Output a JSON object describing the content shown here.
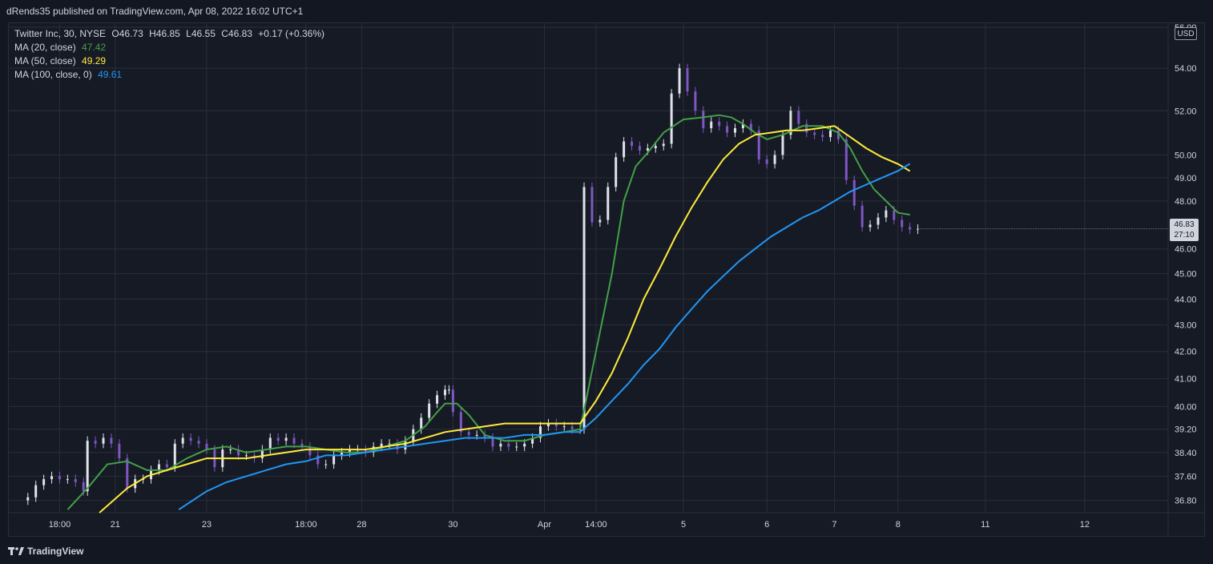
{
  "header": {
    "publish_note": "dRends35 published on TradingView.com, Apr 08, 2022 16:02 UTC+1"
  },
  "legend": {
    "symbol_line": "Twitter Inc, 30, NYSE",
    "ohlc": {
      "o_label": "O",
      "o": "46.73",
      "h_label": "H",
      "h": "46.85",
      "l_label": "L",
      "l": "46.55",
      "c_label": "C",
      "c": "46.83",
      "change": "+0.17 (+0.36%)"
    },
    "ma20": {
      "label": "MA (20, close)",
      "value": "47.42"
    },
    "ma50": {
      "label": "MA (50, close)",
      "value": "49.29"
    },
    "ma100": {
      "label": "MA (100, close, 0)",
      "value": "49.61"
    }
  },
  "axis": {
    "currency": "USD",
    "last_price": "46.83",
    "countdown": "27:10",
    "tick_labels": [
      "56.00",
      "54.00",
      "52.00",
      "50.00",
      "49.00",
      "48.00",
      "46.00",
      "45.00",
      "44.00",
      "43.00",
      "42.00",
      "41.00",
      "40.00",
      "39.20",
      "38.40",
      "37.60",
      "36.80"
    ],
    "time_labels": [
      "18:00",
      "21",
      "23",
      "18:00",
      "28",
      "30",
      "Apr",
      "14:00",
      "5",
      "6",
      "7",
      "8",
      "11",
      "12"
    ]
  },
  "footer": {
    "brand": "TradingView"
  },
  "colors": {
    "background": "#131722",
    "grid": "#2a2e39",
    "text": "#d1d4dc",
    "candle_up": "#e0e3eb",
    "candle_down": "#7e57c2",
    "ma20": "#43a047",
    "ma50": "#ffeb3b",
    "ma100": "#2196f3"
  },
  "chart_data": {
    "type": "line",
    "title": "Twitter Inc, 30, NYSE",
    "scale": "log",
    "ylim": [
      36.4,
      56.0
    ],
    "y_ticks": [
      56,
      54,
      52,
      50,
      49,
      48,
      46,
      45,
      44,
      43,
      42,
      41,
      40,
      39.2,
      38.4,
      37.6,
      36.8
    ],
    "x_ticks": [
      {
        "label": "18:00",
        "t": 8
      },
      {
        "label": "21",
        "t": 22
      },
      {
        "label": "23",
        "t": 45
      },
      {
        "label": "18:00",
        "t": 70
      },
      {
        "label": "28",
        "t": 84
      },
      {
        "label": "30",
        "t": 107
      },
      {
        "label": "Apr",
        "t": 130
      },
      {
        "label": "14:00",
        "t": 143
      },
      {
        "label": "5",
        "t": 165
      },
      {
        "label": "6",
        "t": 186
      },
      {
        "label": "7",
        "t": 203
      },
      {
        "label": "8",
        "t": 219
      },
      {
        "label": "11",
        "t": 241
      },
      {
        "label": "12",
        "t": 266
      }
    ],
    "price_close": [
      [
        0,
        36.9
      ],
      [
        2,
        37.3
      ],
      [
        4,
        37.5
      ],
      [
        6,
        37.6
      ],
      [
        8,
        37.5
      ],
      [
        10,
        37.5
      ],
      [
        12,
        37.4
      ],
      [
        14,
        37.1
      ],
      [
        15,
        38.8
      ],
      [
        17,
        38.7
      ],
      [
        19,
        38.9
      ],
      [
        21,
        38.7
      ],
      [
        23,
        38.2
      ],
      [
        25,
        37.2
      ],
      [
        27,
        37.5
      ],
      [
        29,
        37.5
      ],
      [
        31,
        37.8
      ],
      [
        33,
        38.0
      ],
      [
        35,
        37.9
      ],
      [
        37,
        38.7
      ],
      [
        39,
        38.9
      ],
      [
        41,
        38.8
      ],
      [
        43,
        38.7
      ],
      [
        45,
        38.5
      ],
      [
        47,
        37.9
      ],
      [
        49,
        38.5
      ],
      [
        51,
        38.5
      ],
      [
        53,
        38.3
      ],
      [
        55,
        38.3
      ],
      [
        57,
        38.2
      ],
      [
        59,
        38.5
      ],
      [
        61,
        38.9
      ],
      [
        63,
        38.8
      ],
      [
        65,
        38.9
      ],
      [
        67,
        38.7
      ],
      [
        69,
        38.6
      ],
      [
        71,
        38.3
      ],
      [
        73,
        38.0
      ],
      [
        75,
        38.0
      ],
      [
        77,
        38.3
      ],
      [
        79,
        38.4
      ],
      [
        81,
        38.5
      ],
      [
        83,
        38.5
      ],
      [
        85,
        38.4
      ],
      [
        87,
        38.6
      ],
      [
        89,
        38.7
      ],
      [
        91,
        38.7
      ],
      [
        93,
        38.5
      ],
      [
        95,
        38.8
      ],
      [
        97,
        39.2
      ],
      [
        99,
        39.6
      ],
      [
        101,
        40.1
      ],
      [
        103,
        40.4
      ],
      [
        105,
        40.6
      ],
      [
        106,
        40.6
      ],
      [
        107,
        39.8
      ],
      [
        109,
        39.1
      ],
      [
        111,
        39.0
      ],
      [
        113,
        39.0
      ],
      [
        115,
        38.9
      ],
      [
        117,
        38.6
      ],
      [
        119,
        38.7
      ],
      [
        121,
        38.6
      ],
      [
        123,
        38.6
      ],
      [
        125,
        38.7
      ],
      [
        127,
        38.9
      ],
      [
        129,
        39.3
      ],
      [
        131,
        39.4
      ],
      [
        133,
        39.3
      ],
      [
        135,
        39.3
      ],
      [
        137,
        39.2
      ],
      [
        139,
        39.2
      ],
      [
        140,
        48.6
      ],
      [
        142,
        47.1
      ],
      [
        144,
        47.2
      ],
      [
        146,
        48.6
      ],
      [
        148,
        49.9
      ],
      [
        150,
        50.6
      ],
      [
        152,
        50.4
      ],
      [
        154,
        50.2
      ],
      [
        156,
        50.3
      ],
      [
        158,
        50.4
      ],
      [
        160,
        50.5
      ],
      [
        162,
        52.8
      ],
      [
        164,
        54.0
      ],
      [
        166,
        52.9
      ],
      [
        168,
        52.0
      ],
      [
        170,
        51.2
      ],
      [
        172,
        51.5
      ],
      [
        174,
        51.3
      ],
      [
        176,
        51.0
      ],
      [
        178,
        51.2
      ],
      [
        180,
        51.4
      ],
      [
        182,
        51.1
      ],
      [
        184,
        49.8
      ],
      [
        186,
        49.6
      ],
      [
        188,
        50.0
      ],
      [
        190,
        50.9
      ],
      [
        192,
        52.0
      ],
      [
        194,
        51.4
      ],
      [
        196,
        51.0
      ],
      [
        198,
        50.9
      ],
      [
        200,
        50.8
      ],
      [
        202,
        51.1
      ],
      [
        204,
        50.7
      ],
      [
        206,
        48.9
      ],
      [
        208,
        47.8
      ],
      [
        210,
        46.9
      ],
      [
        212,
        47.0
      ],
      [
        214,
        47.3
      ],
      [
        216,
        47.6
      ],
      [
        218,
        47.2
      ],
      [
        220,
        46.9
      ],
      [
        222,
        46.8
      ],
      [
        224,
        46.83
      ]
    ],
    "series": [
      {
        "name": "MA (20, close)",
        "color": "#43a047",
        "points": [
          [
            10,
            36.5
          ],
          [
            15,
            37.2
          ],
          [
            20,
            38.0
          ],
          [
            25,
            38.1
          ],
          [
            30,
            37.8
          ],
          [
            35,
            37.8
          ],
          [
            40,
            38.2
          ],
          [
            45,
            38.5
          ],
          [
            50,
            38.6
          ],
          [
            55,
            38.4
          ],
          [
            60,
            38.5
          ],
          [
            65,
            38.6
          ],
          [
            70,
            38.6
          ],
          [
            75,
            38.5
          ],
          [
            80,
            38.4
          ],
          [
            85,
            38.4
          ],
          [
            90,
            38.6
          ],
          [
            95,
            38.8
          ],
          [
            100,
            39.3
          ],
          [
            103,
            39.8
          ],
          [
            105,
            40.1
          ],
          [
            108,
            40.1
          ],
          [
            111,
            39.7
          ],
          [
            115,
            39.0
          ],
          [
            120,
            38.8
          ],
          [
            125,
            38.8
          ],
          [
            130,
            39.0
          ],
          [
            135,
            39.1
          ],
          [
            139,
            39.2
          ],
          [
            143,
            42.0
          ],
          [
            147,
            45.0
          ],
          [
            150,
            48.0
          ],
          [
            153,
            49.5
          ],
          [
            156,
            50.1
          ],
          [
            160,
            51.0
          ],
          [
            165,
            51.6
          ],
          [
            170,
            51.7
          ],
          [
            174,
            51.8
          ],
          [
            177,
            51.7
          ],
          [
            180,
            51.4
          ],
          [
            183,
            51.0
          ],
          [
            186,
            50.7
          ],
          [
            190,
            50.9
          ],
          [
            195,
            51.3
          ],
          [
            200,
            51.3
          ],
          [
            204,
            51.0
          ],
          [
            207,
            50.3
          ],
          [
            210,
            49.3
          ],
          [
            213,
            48.5
          ],
          [
            216,
            48.0
          ],
          [
            219,
            47.5
          ],
          [
            222,
            47.42
          ]
        ]
      },
      {
        "name": "MA (50, close)",
        "color": "#ffeb3b",
        "points": [
          [
            18,
            36.4
          ],
          [
            25,
            37.2
          ],
          [
            30,
            37.6
          ],
          [
            35,
            37.8
          ],
          [
            40,
            38.0
          ],
          [
            45,
            38.2
          ],
          [
            50,
            38.2
          ],
          [
            55,
            38.2
          ],
          [
            60,
            38.3
          ],
          [
            65,
            38.4
          ],
          [
            70,
            38.5
          ],
          [
            75,
            38.5
          ],
          [
            80,
            38.5
          ],
          [
            85,
            38.5
          ],
          [
            90,
            38.6
          ],
          [
            95,
            38.7
          ],
          [
            100,
            38.9
          ],
          [
            105,
            39.1
          ],
          [
            110,
            39.2
          ],
          [
            115,
            39.3
          ],
          [
            120,
            39.4
          ],
          [
            125,
            39.4
          ],
          [
            130,
            39.4
          ],
          [
            135,
            39.4
          ],
          [
            139,
            39.4
          ],
          [
            143,
            40.2
          ],
          [
            147,
            41.2
          ],
          [
            151,
            42.5
          ],
          [
            155,
            44.0
          ],
          [
            159,
            45.2
          ],
          [
            163,
            46.5
          ],
          [
            167,
            47.7
          ],
          [
            171,
            48.8
          ],
          [
            175,
            49.8
          ],
          [
            179,
            50.5
          ],
          [
            183,
            50.9
          ],
          [
            187,
            51.0
          ],
          [
            191,
            51.1
          ],
          [
            195,
            51.1
          ],
          [
            199,
            51.2
          ],
          [
            203,
            51.3
          ],
          [
            207,
            50.8
          ],
          [
            211,
            50.3
          ],
          [
            215,
            49.9
          ],
          [
            219,
            49.6
          ],
          [
            222,
            49.29
          ]
        ]
      },
      {
        "name": "MA (100, close, 0)",
        "color": "#2196f3",
        "points": [
          [
            38,
            36.5
          ],
          [
            45,
            37.1
          ],
          [
            50,
            37.4
          ],
          [
            55,
            37.6
          ],
          [
            60,
            37.8
          ],
          [
            65,
            38.0
          ],
          [
            70,
            38.1
          ],
          [
            75,
            38.3
          ],
          [
            80,
            38.3
          ],
          [
            85,
            38.4
          ],
          [
            90,
            38.5
          ],
          [
            95,
            38.6
          ],
          [
            100,
            38.7
          ],
          [
            105,
            38.8
          ],
          [
            110,
            38.9
          ],
          [
            115,
            38.9
          ],
          [
            120,
            38.9
          ],
          [
            125,
            39.0
          ],
          [
            130,
            39.0
          ],
          [
            135,
            39.1
          ],
          [
            139,
            39.1
          ],
          [
            143,
            39.6
          ],
          [
            147,
            40.2
          ],
          [
            151,
            40.8
          ],
          [
            155,
            41.5
          ],
          [
            159,
            42.1
          ],
          [
            163,
            42.9
          ],
          [
            167,
            43.6
          ],
          [
            171,
            44.3
          ],
          [
            175,
            44.9
          ],
          [
            179,
            45.5
          ],
          [
            183,
            46.0
          ],
          [
            187,
            46.5
          ],
          [
            191,
            46.9
          ],
          [
            195,
            47.3
          ],
          [
            199,
            47.6
          ],
          [
            203,
            48.0
          ],
          [
            207,
            48.4
          ],
          [
            211,
            48.7
          ],
          [
            215,
            49.0
          ],
          [
            219,
            49.3
          ],
          [
            222,
            49.61
          ]
        ]
      }
    ]
  }
}
